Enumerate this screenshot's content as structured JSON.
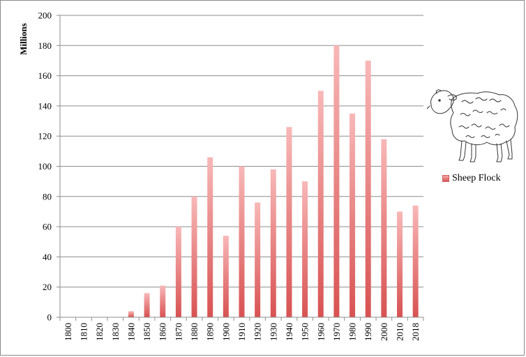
{
  "chart_data": {
    "type": "bar",
    "ylabel": "Millions",
    "ylim": [
      0,
      200
    ],
    "yticks": [
      0,
      20,
      40,
      60,
      80,
      100,
      120,
      140,
      160,
      180,
      200
    ],
    "categories": [
      "1800",
      "1810",
      "1820",
      "1830",
      "1840",
      "1850",
      "1860",
      "1870",
      "1880",
      "1890",
      "1900",
      "1910",
      "1920",
      "1930",
      "1940",
      "1950",
      "1960",
      "1970",
      "1980",
      "1990",
      "2000",
      "2010",
      "2018"
    ],
    "series": [
      {
        "name": "Sheep Flock",
        "values": [
          0,
          0,
          0,
          0,
          4,
          16,
          21,
          60,
          80,
          106,
          54,
          100,
          76,
          98,
          126,
          90,
          150,
          180,
          135,
          170,
          118,
          70,
          74
        ]
      }
    ],
    "grid": true,
    "legend_position": "right",
    "bar_color_top": "#f8b8b8",
    "bar_color_bottom": "#d85252"
  },
  "legend": {
    "label": "Sheep Flock"
  },
  "sheep_image": {
    "icon": "sheep-sketch-icon"
  }
}
